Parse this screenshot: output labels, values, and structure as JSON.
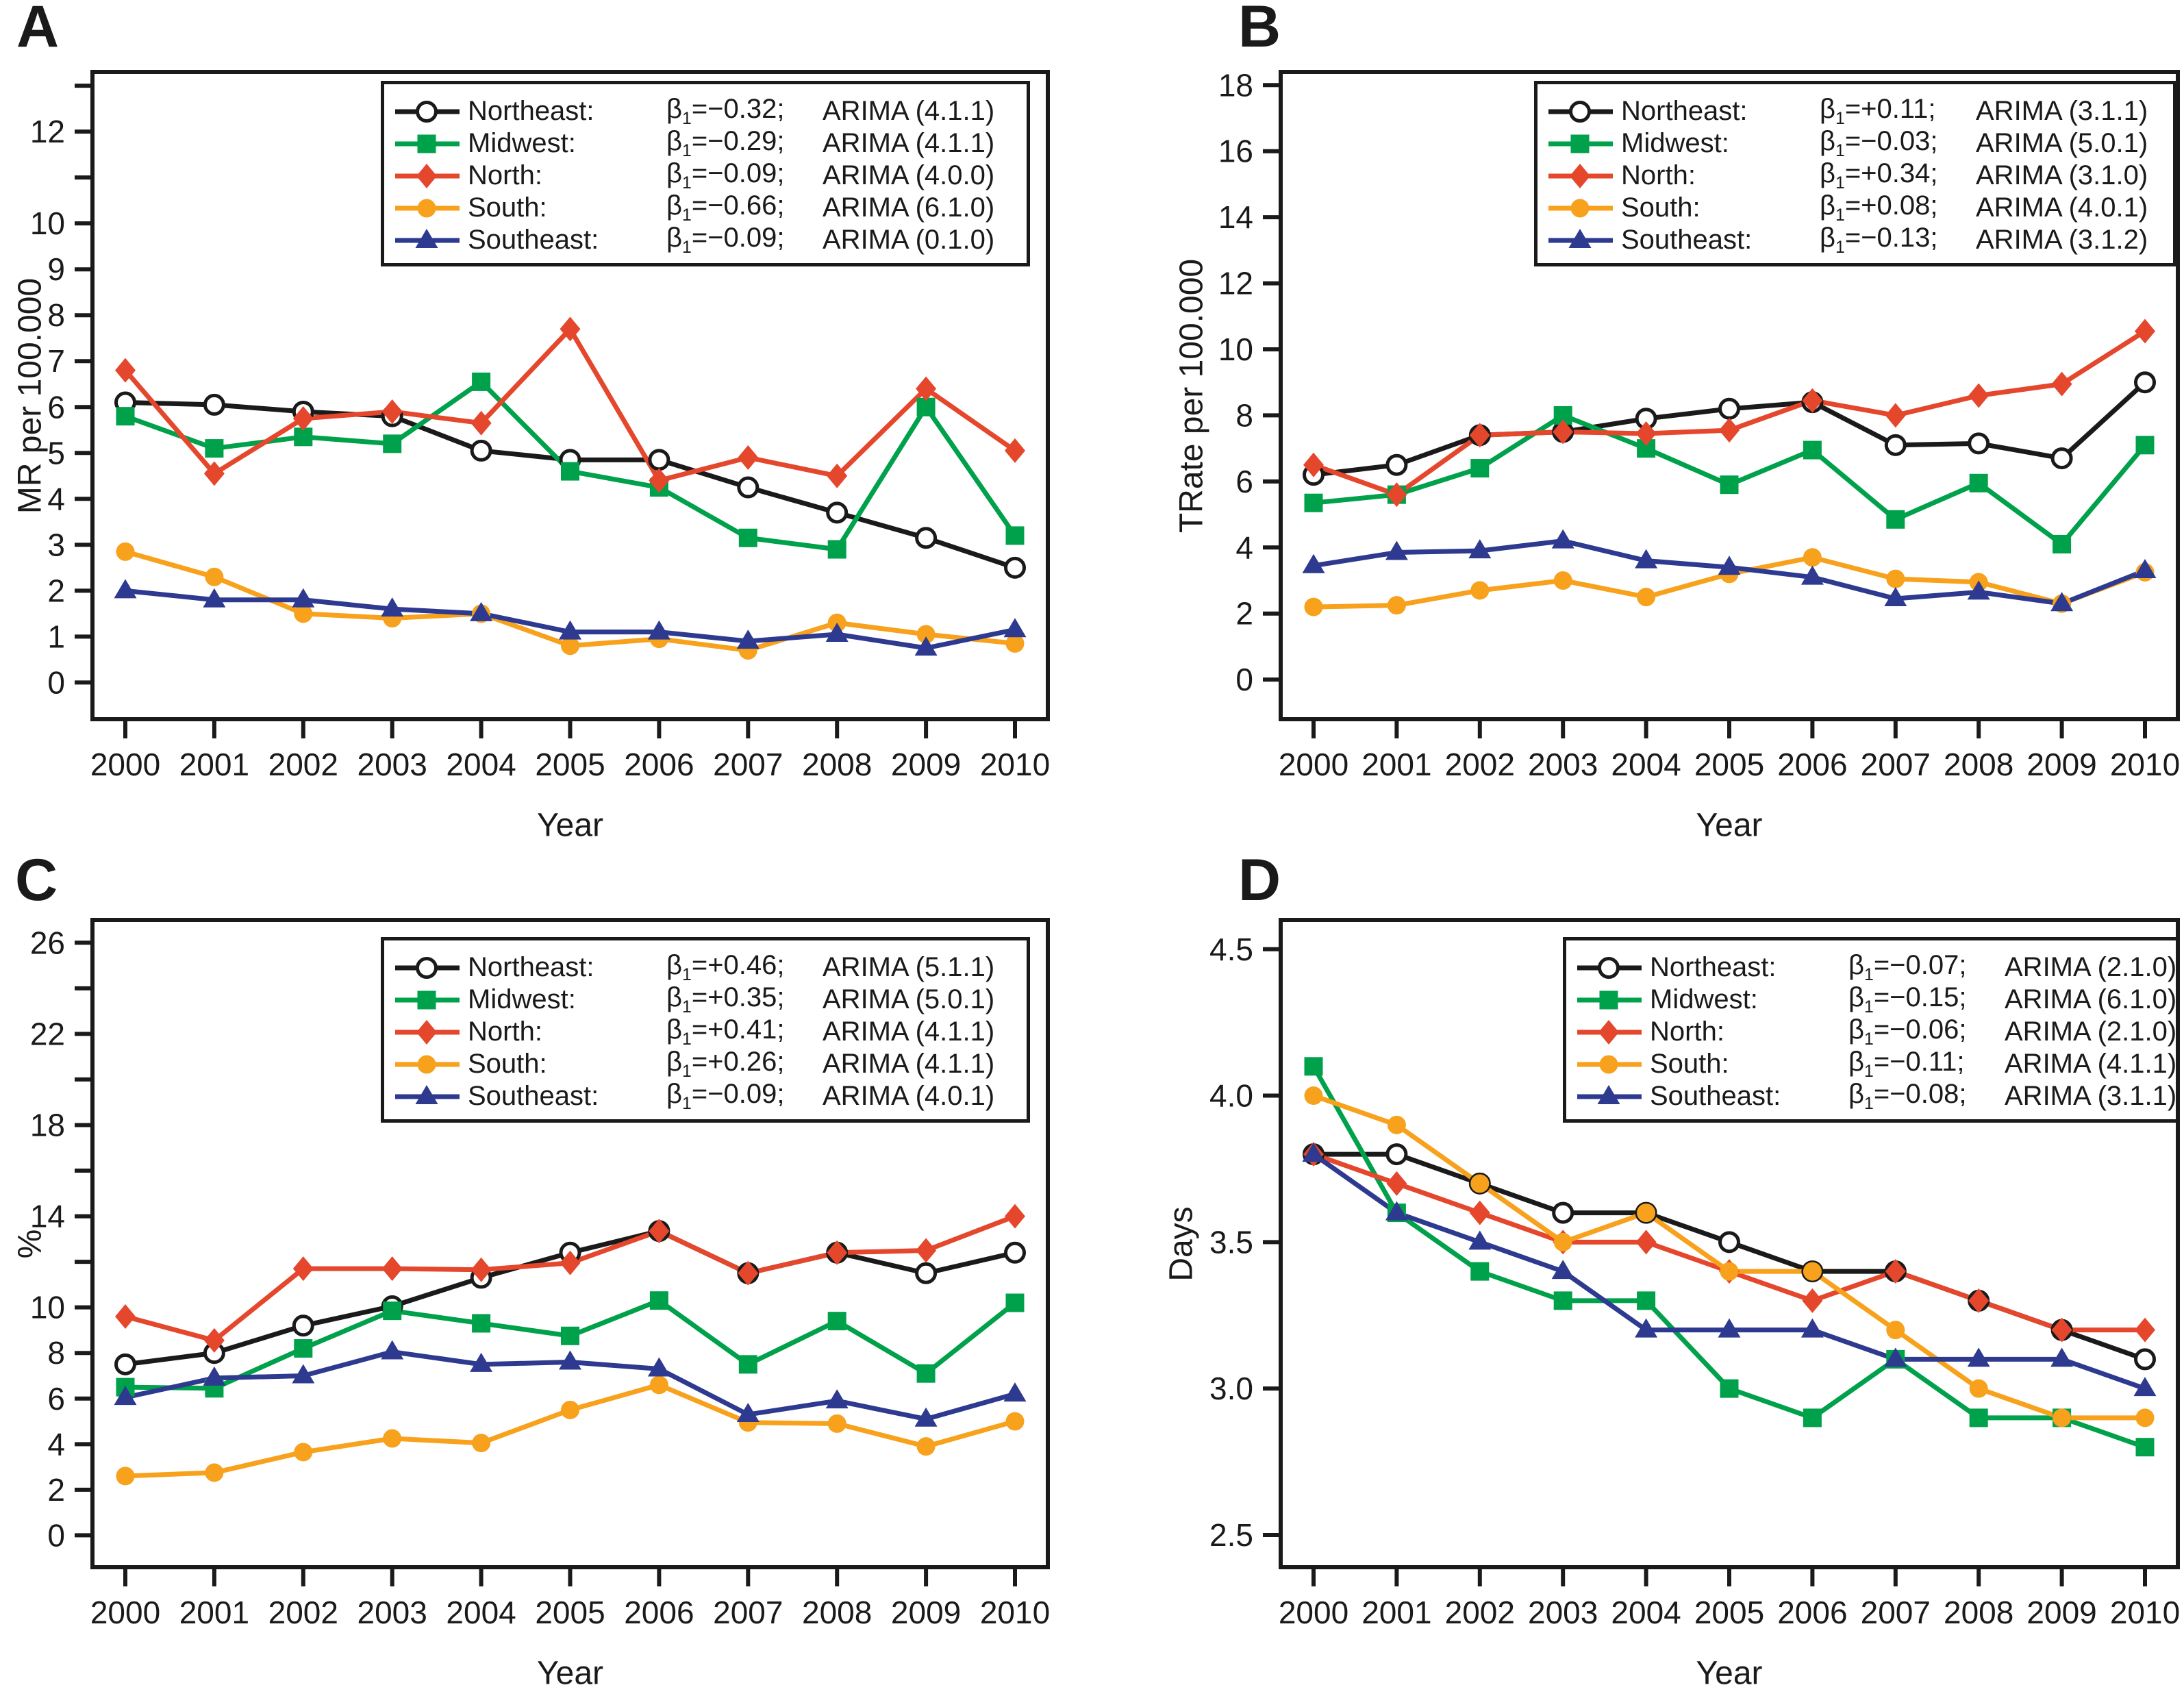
{
  "chart_data": [
    {
      "type": "line",
      "letter": "A",
      "ylabel": "MR per 100.000",
      "xlabel": "Year",
      "x": [
        "2000",
        "2001",
        "2002",
        "2003",
        "2004",
        "2005",
        "2006",
        "2007",
        "2008",
        "2009",
        "2010"
      ],
      "ylim": [
        -0.8,
        13.3
      ],
      "grid": false,
      "legend_position": "top-right",
      "yticks": [
        {
          "v": 0,
          "t": "0"
        },
        {
          "v": 1,
          "t": "1"
        },
        {
          "v": 2,
          "t": "2"
        },
        {
          "v": 3,
          "t": "3"
        },
        {
          "v": 4,
          "t": "4"
        },
        {
          "v": 5,
          "t": "5"
        },
        {
          "v": 6,
          "t": "6"
        },
        {
          "v": 7,
          "t": "7"
        },
        {
          "v": 8,
          "t": "8"
        },
        {
          "v": 9,
          "t": "9"
        },
        {
          "v": 10,
          "t": "10"
        },
        {
          "v": 11,
          "t": ""
        },
        {
          "v": 12,
          "t": "12"
        },
        {
          "v": 13,
          "t": ""
        }
      ],
      "series": [
        {
          "name": "Northeast:",
          "beta_sym": "β",
          "beta_sub": "1",
          "beta_val": "=−0.32;",
          "arima": "ARIMA (4.1.1)",
          "color": "#1a1a1a",
          "marker": "open-circle",
          "values": [
            6.1,
            6.05,
            5.9,
            5.8,
            5.05,
            4.85,
            4.85,
            4.25,
            3.7,
            3.15,
            2.5
          ]
        },
        {
          "name": "Midwest:",
          "beta_sym": "β",
          "beta_sub": "1",
          "beta_val": "=−0.29;",
          "arima": "ARIMA (4.1.1)",
          "color": "#00A14B",
          "marker": "square",
          "values": [
            5.8,
            5.1,
            5.35,
            5.2,
            6.55,
            4.6,
            4.25,
            3.15,
            2.9,
            6.0,
            3.2
          ]
        },
        {
          "name": "North:",
          "beta_sym": "β",
          "beta_sub": "1",
          "beta_val": "=−0.09;",
          "arima": "ARIMA (4.0.0)",
          "color": "#E5472D",
          "marker": "diamond",
          "values": [
            6.8,
            4.55,
            5.75,
            5.9,
            5.65,
            7.7,
            4.4,
            4.9,
            4.5,
            6.4,
            5.05
          ]
        },
        {
          "name": "South:",
          "beta_sym": "β",
          "beta_sub": "1",
          "beta_val": "=−0.66;",
          "arima": "ARIMA (6.1.0)",
          "color": "#F7A11C",
          "marker": "circle",
          "values": [
            2.85,
            2.3,
            1.5,
            1.4,
            1.5,
            0.8,
            0.95,
            0.7,
            1.3,
            1.05,
            0.85
          ]
        },
        {
          "name": "Southeast:",
          "beta_sym": "β",
          "beta_sub": "1",
          "beta_val": "=−0.09;",
          "arima": "ARIMA (0.1.0)",
          "color": "#2D3A8F",
          "marker": "triangle",
          "values": [
            2.0,
            1.8,
            1.8,
            1.6,
            1.5,
            1.1,
            1.1,
            0.9,
            1.05,
            0.75,
            1.15
          ]
        }
      ]
    },
    {
      "type": "line",
      "letter": "B",
      "ylabel": "TRate per 100.000",
      "xlabel": "Year",
      "x": [
        "2000",
        "2001",
        "2002",
        "2003",
        "2004",
        "2005",
        "2006",
        "2007",
        "2008",
        "2009",
        "2010"
      ],
      "ylim": [
        -1.2,
        18.4
      ],
      "grid": false,
      "legend_position": "top-right",
      "yticks": [
        {
          "v": 0,
          "t": "0"
        },
        {
          "v": 2,
          "t": "2"
        },
        {
          "v": 4,
          "t": "4"
        },
        {
          "v": 6,
          "t": "6"
        },
        {
          "v": 8,
          "t": "8"
        },
        {
          "v": 10,
          "t": "10"
        },
        {
          "v": 12,
          "t": "12"
        },
        {
          "v": 14,
          "t": "14"
        },
        {
          "v": 16,
          "t": "16"
        },
        {
          "v": 18,
          "t": "18"
        }
      ],
      "series": [
        {
          "name": "Northeast:",
          "beta_sym": "β",
          "beta_sub": "1",
          "beta_val": "=+0.11;",
          "arima": "ARIMA (3.1.1)",
          "color": "#1a1a1a",
          "marker": "open-circle",
          "values": [
            6.2,
            6.5,
            7.4,
            7.5,
            7.9,
            8.2,
            8.4,
            7.1,
            7.15,
            6.7,
            9.0
          ]
        },
        {
          "name": "Midwest:",
          "beta_sym": "β",
          "beta_sub": "1",
          "beta_val": "=−0.03;",
          "arima": "ARIMA (5.0.1)",
          "color": "#00A14B",
          "marker": "square",
          "values": [
            5.35,
            5.6,
            6.4,
            8.0,
            7.0,
            5.9,
            6.95,
            4.85,
            5.95,
            4.1,
            7.1
          ]
        },
        {
          "name": "North:",
          "beta_sym": "β",
          "beta_sub": "1",
          "beta_val": "=+0.34;",
          "arima": "ARIMA (3.1.0)",
          "color": "#E5472D",
          "marker": "diamond",
          "values": [
            6.5,
            5.6,
            7.4,
            7.5,
            7.45,
            7.55,
            8.45,
            8.0,
            8.6,
            8.95,
            10.55
          ]
        },
        {
          "name": "South:",
          "beta_sym": "β",
          "beta_sub": "1",
          "beta_val": "=+0.08;",
          "arima": "ARIMA (4.0.1)",
          "color": "#F7A11C",
          "marker": "circle",
          "values": [
            2.2,
            2.25,
            2.7,
            3.0,
            2.5,
            3.2,
            3.7,
            3.05,
            2.95,
            2.3,
            3.25
          ]
        },
        {
          "name": "Southeast:",
          "beta_sym": "β",
          "beta_sub": "1",
          "beta_val": "=−0.13;",
          "arima": "ARIMA (3.1.2)",
          "color": "#2D3A8F",
          "marker": "triangle",
          "values": [
            3.45,
            3.85,
            3.9,
            4.2,
            3.6,
            3.4,
            3.1,
            2.45,
            2.65,
            2.3,
            3.3
          ]
        }
      ]
    },
    {
      "type": "line",
      "letter": "C",
      "ylabel": "%",
      "xlabel": "Year",
      "x": [
        "2000",
        "2001",
        "2002",
        "2003",
        "2004",
        "2005",
        "2006",
        "2007",
        "2008",
        "2009",
        "2010"
      ],
      "ylim": [
        -1.4,
        27.0
      ],
      "grid": false,
      "legend_position": "top-right",
      "yticks": [
        {
          "v": 0,
          "t": "0"
        },
        {
          "v": 2,
          "t": "2"
        },
        {
          "v": 4,
          "t": "4"
        },
        {
          "v": 6,
          "t": "6"
        },
        {
          "v": 8,
          "t": "8"
        },
        {
          "v": 10,
          "t": "10"
        },
        {
          "v": 12,
          "t": ""
        },
        {
          "v": 14,
          "t": "14"
        },
        {
          "v": 16,
          "t": ""
        },
        {
          "v": 18,
          "t": "18"
        },
        {
          "v": 20,
          "t": ""
        },
        {
          "v": 22,
          "t": "22"
        },
        {
          "v": 24,
          "t": ""
        },
        {
          "v": 26,
          "t": "26"
        }
      ],
      "series": [
        {
          "name": "Northeast:",
          "beta_sym": "β",
          "beta_sub": "1",
          "beta_val": "=+0.46;",
          "arima": "ARIMA (5.1.1)",
          "color": "#1a1a1a",
          "marker": "open-circle",
          "values": [
            7.5,
            8.0,
            9.2,
            10.05,
            11.3,
            12.4,
            13.35,
            11.5,
            12.4,
            11.5,
            12.4
          ]
        },
        {
          "name": "Midwest:",
          "beta_sym": "β",
          "beta_sub": "1",
          "beta_val": "=+0.35;",
          "arima": "ARIMA (5.0.1)",
          "color": "#00A14B",
          "marker": "square",
          "values": [
            6.5,
            6.45,
            8.2,
            9.85,
            9.3,
            8.75,
            10.3,
            7.5,
            9.4,
            7.1,
            10.2
          ]
        },
        {
          "name": "North:",
          "beta_sym": "β",
          "beta_sub": "1",
          "beta_val": "=+0.41;",
          "arima": "ARIMA (4.1.1)",
          "color": "#E5472D",
          "marker": "diamond",
          "values": [
            9.6,
            8.55,
            11.7,
            11.7,
            11.65,
            11.95,
            13.35,
            11.5,
            12.4,
            12.5,
            14.0
          ]
        },
        {
          "name": "South:",
          "beta_sym": "β",
          "beta_sub": "1",
          "beta_val": "=+0.26;",
          "arima": "ARIMA (4.1.1)",
          "color": "#F7A11C",
          "marker": "circle",
          "values": [
            2.6,
            2.75,
            3.65,
            4.25,
            4.05,
            5.5,
            6.6,
            4.95,
            4.9,
            3.9,
            5.0
          ]
        },
        {
          "name": "Southeast:",
          "beta_sym": "β",
          "beta_sub": "1",
          "beta_val": "=−0.09;",
          "arima": "ARIMA (4.0.1)",
          "color": "#2D3A8F",
          "marker": "triangle",
          "values": [
            6.05,
            6.9,
            7.0,
            8.05,
            7.5,
            7.6,
            7.3,
            5.3,
            5.9,
            5.1,
            6.2
          ]
        }
      ]
    },
    {
      "type": "line",
      "letter": "D",
      "ylabel": "Days",
      "xlabel": "Year",
      "x": [
        "2000",
        "2001",
        "2002",
        "2003",
        "2004",
        "2005",
        "2006",
        "2007",
        "2008",
        "2009",
        "2010"
      ],
      "ylim": [
        2.39,
        4.6
      ],
      "grid": false,
      "legend_position": "top-right",
      "yticks": [
        {
          "v": 2.5,
          "t": "2.5"
        },
        {
          "v": 3.0,
          "t": "3.0"
        },
        {
          "v": 3.5,
          "t": "3.5"
        },
        {
          "v": 4.0,
          "t": "4.0"
        },
        {
          "v": 4.5,
          "t": "4.5"
        }
      ],
      "series": [
        {
          "name": "Northeast:",
          "beta_sym": "β",
          "beta_sub": "1",
          "beta_val": "=−0.07;",
          "arima": "ARIMA (2.1.0)",
          "color": "#1a1a1a",
          "marker": "open-circle",
          "values": [
            3.8,
            3.8,
            3.7,
            3.6,
            3.6,
            3.5,
            3.4,
            3.4,
            3.3,
            3.2,
            3.1
          ]
        },
        {
          "name": "Midwest:",
          "beta_sym": "β",
          "beta_sub": "1",
          "beta_val": "=−0.15;",
          "arima": "ARIMA (6.1.0)",
          "color": "#00A14B",
          "marker": "square",
          "values": [
            4.1,
            3.6,
            3.4,
            3.3,
            3.3,
            3.0,
            2.9,
            3.1,
            2.9,
            2.9,
            2.8
          ]
        },
        {
          "name": "North:",
          "beta_sym": "β",
          "beta_sub": "1",
          "beta_val": "=−0.06;",
          "arima": "ARIMA (2.1.0)",
          "color": "#E5472D",
          "marker": "diamond",
          "values": [
            3.8,
            3.7,
            3.6,
            3.5,
            3.5,
            3.4,
            3.3,
            3.4,
            3.3,
            3.2,
            3.2
          ]
        },
        {
          "name": "South:",
          "beta_sym": "β",
          "beta_sub": "1",
          "beta_val": "=−0.11;",
          "arima": "ARIMA (4.1.1)",
          "color": "#F7A11C",
          "marker": "circle",
          "values": [
            4.0,
            3.9,
            3.7,
            3.5,
            3.6,
            3.4,
            3.4,
            3.2,
            3.0,
            2.9,
            2.9
          ]
        },
        {
          "name": "Southeast:",
          "beta_sym": "β",
          "beta_sub": "1",
          "beta_val": "=−0.08;",
          "arima": "ARIMA (3.1.1)",
          "color": "#2D3A8F",
          "marker": "triangle",
          "values": [
            3.8,
            3.6,
            3.5,
            3.4,
            3.2,
            3.2,
            3.2,
            3.1,
            3.1,
            3.1,
            3.0
          ]
        }
      ]
    }
  ]
}
